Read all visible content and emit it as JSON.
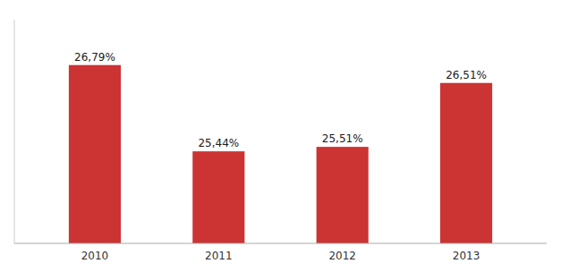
{
  "chart_data": {
    "type": "bar",
    "categories": [
      "2010",
      "2011",
      "2012",
      "2013"
    ],
    "values": [
      26.79,
      25.44,
      25.51,
      26.51
    ],
    "value_labels": [
      "26,79%",
      "25,44%",
      "25,51%",
      "26,51%"
    ],
    "data_labels": true,
    "color": "#cc3333",
    "ylim": [
      24.0,
      27.5
    ],
    "tick_labels": "x",
    "grid": false
  }
}
